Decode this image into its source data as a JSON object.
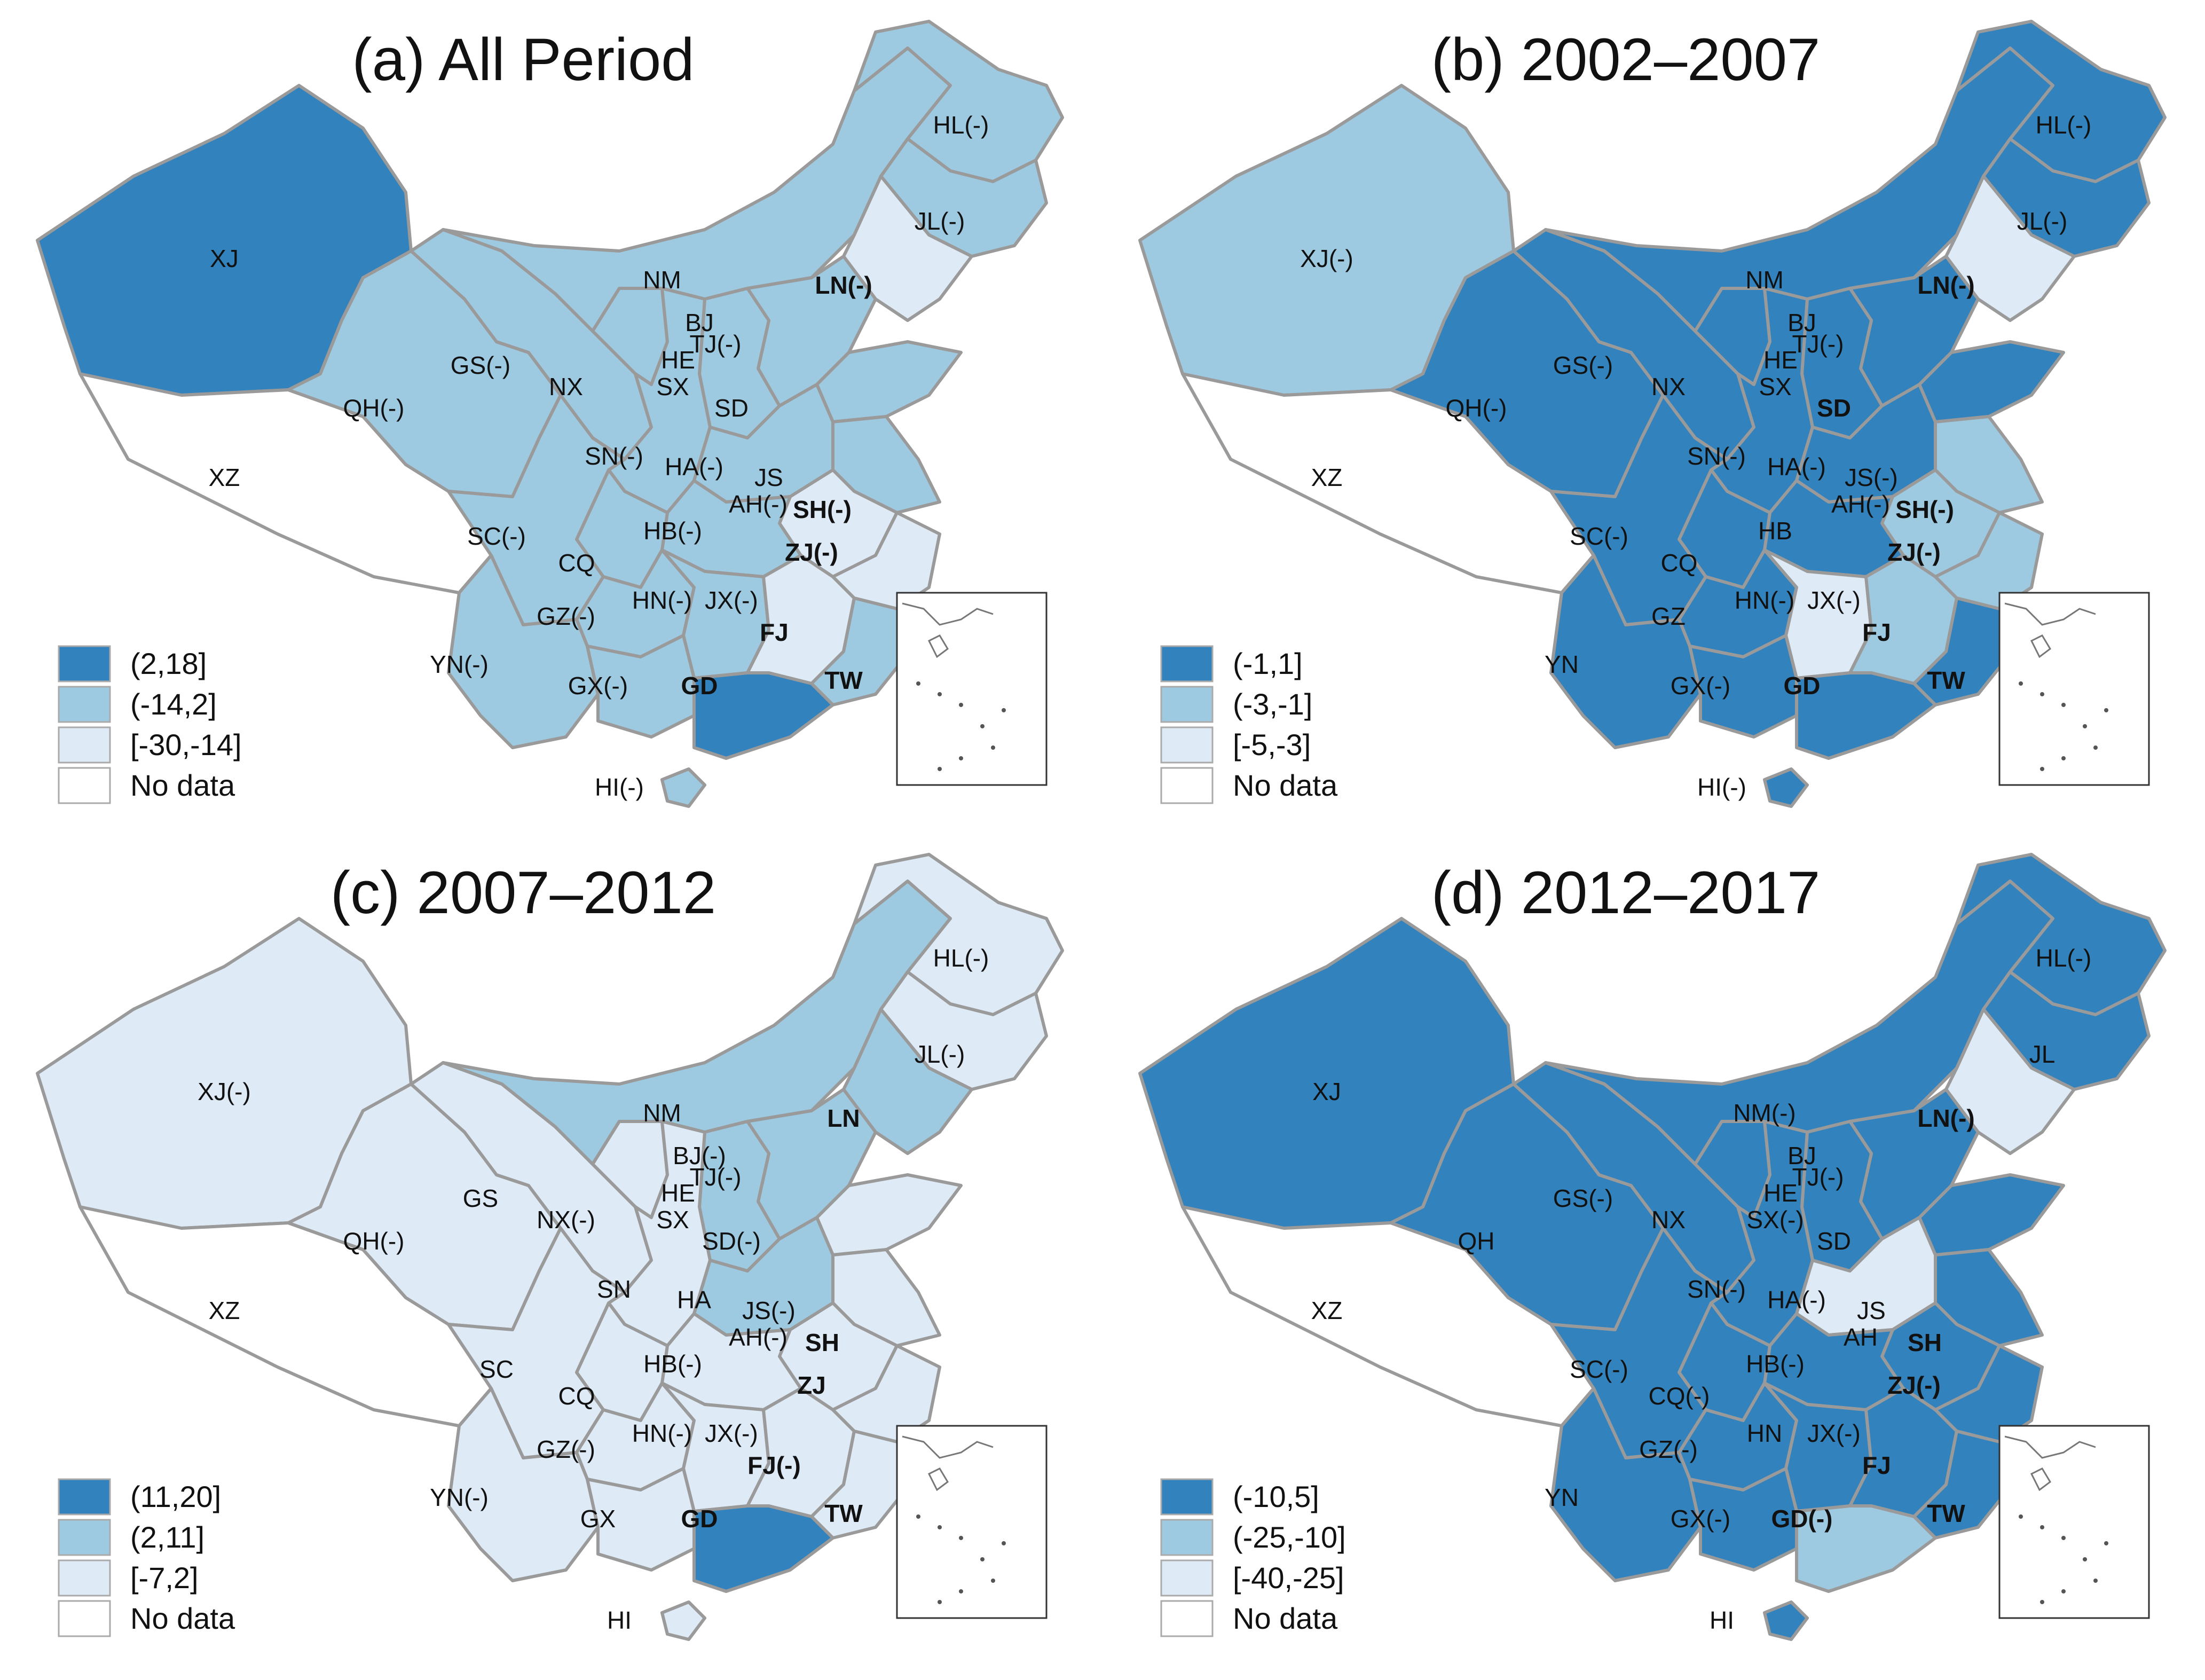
{
  "colors": {
    "class_high": "#3182bd",
    "class_mid": "#9ecae1",
    "class_low": "#deebf7",
    "no_data": "#ffffff",
    "border": "#9a9a9a",
    "text": "#111111"
  },
  "panels": [
    {
      "title": "(a) All Period",
      "legend": [
        "(2,18]",
        "(-14,2]",
        "[-30,-14]",
        "No data"
      ],
      "regions": {
        "XJ": "high",
        "XZ": "none",
        "QH": "mid",
        "GS": "mid",
        "NM": "mid",
        "HL": "mid",
        "JL": "mid",
        "LN": "low",
        "SC": "mid",
        "YN": "mid",
        "GZ": "mid",
        "GX": "mid",
        "GD": "high",
        "FJ": "mid",
        "JX": "low",
        "HN": "mid",
        "HB": "mid",
        "AH": "low",
        "JS": "mid",
        "ZJ": "low",
        "SD": "mid",
        "HA": "mid",
        "SN": "mid",
        "SX": "mid",
        "HE": "mid",
        "NX": "mid",
        "CQ": "mid",
        "HI": "mid",
        "TW": "none"
      },
      "labels": {
        "XJ": "XJ",
        "XZ": "XZ",
        "QH": "QH(-)",
        "GS": "GS(-)",
        "NX": "NX",
        "NM": "NM",
        "HL": "HL(-)",
        "JL": "JL(-)",
        "LN": "LN(-)",
        "BJ": "BJ",
        "TJ": "TJ(-)",
        "HE": "HE",
        "SX": "SX",
        "SD": "SD",
        "SN": "SN(-)",
        "HA": "HA(-)",
        "JS": "JS",
        "AH": "AH(-)",
        "SH": "SH(-)",
        "SC": "SC(-)",
        "CQ": "CQ",
        "HB": "HB(-)",
        "ZJ": "ZJ(-)",
        "GZ": "GZ(-)",
        "HN": "HN(-)",
        "JX": "JX(-)",
        "FJ": "FJ",
        "YN": "YN(-)",
        "GX": "GX(-)",
        "GD": "GD",
        "TW": "TW",
        "HI": "HI(-)"
      },
      "bold": [
        "LN",
        "SH",
        "ZJ",
        "FJ",
        "GD",
        "TW"
      ]
    },
    {
      "title": "(b) 2002–2007",
      "legend": [
        "(-1,1]",
        "(-3,-1]",
        "[-5,-3]",
        "No data"
      ],
      "regions": {
        "XJ": "mid",
        "XZ": "none",
        "QH": "high",
        "GS": "high",
        "NM": "high",
        "HL": "high",
        "JL": "high",
        "LN": "low",
        "SC": "high",
        "YN": "high",
        "GZ": "high",
        "GX": "high",
        "GD": "high",
        "FJ": "high",
        "JX": "mid",
        "HN": "low",
        "HB": "high",
        "AH": "mid",
        "JS": "mid",
        "ZJ": "mid",
        "SD": "high",
        "HA": "high",
        "SN": "high",
        "SX": "high",
        "HE": "high",
        "NX": "high",
        "CQ": "high",
        "HI": "high",
        "TW": "none"
      },
      "labels": {
        "XJ": "XJ(-)",
        "XZ": "XZ",
        "QH": "QH(-)",
        "GS": "GS(-)",
        "NX": "NX",
        "NM": "NM",
        "HL": "HL(-)",
        "JL": "JL(-)",
        "LN": "LN(-)",
        "BJ": "BJ",
        "TJ": "TJ(-)",
        "HE": "HE",
        "SX": "SX",
        "SD": "SD",
        "SN": "SN(-)",
        "HA": "HA(-)",
        "JS": "JS(-)",
        "AH": "AH(-)",
        "SH": "SH(-)",
        "SC": "SC(-)",
        "CQ": "CQ",
        "HB": "HB",
        "ZJ": "ZJ(-)",
        "GZ": "GZ",
        "HN": "HN(-)",
        "JX": "JX(-)",
        "FJ": "FJ",
        "YN": "YN",
        "GX": "GX(-)",
        "GD": "GD",
        "TW": "TW",
        "HI": "HI(-)"
      },
      "bold": [
        "LN",
        "SH",
        "ZJ",
        "FJ",
        "GD",
        "TW",
        "SD"
      ]
    },
    {
      "title": "(c) 2007–2012",
      "legend": [
        "(11,20]",
        "(2,11]",
        "[-7,2]",
        "No data"
      ],
      "regions": {
        "XJ": "low",
        "XZ": "none",
        "QH": "low",
        "GS": "low",
        "NM": "mid",
        "HL": "low",
        "JL": "low",
        "LN": "mid",
        "SC": "low",
        "YN": "low",
        "GZ": "low",
        "GX": "low",
        "GD": "high",
        "FJ": "low",
        "JX": "low",
        "HN": "low",
        "HB": "low",
        "AH": "low",
        "JS": "low",
        "ZJ": "low",
        "SD": "low",
        "HA": "mid",
        "SN": "low",
        "SX": "mid",
        "HE": "mid",
        "NX": "low",
        "CQ": "low",
        "HI": "low",
        "TW": "none"
      },
      "labels": {
        "XJ": "XJ(-)",
        "XZ": "XZ",
        "QH": "QH(-)",
        "GS": "GS",
        "NX": "NX(-)",
        "NM": "NM",
        "HL": "HL(-)",
        "JL": "JL(-)",
        "LN": "LN",
        "BJ": "BJ(-)",
        "TJ": "TJ(-)",
        "HE": "HE",
        "SX": "SX",
        "SD": "SD(-)",
        "SN": "SN",
        "HA": "HA",
        "JS": "JS(-)",
        "AH": "AH(-)",
        "SH": "SH",
        "SC": "SC",
        "CQ": "CQ",
        "HB": "HB(-)",
        "ZJ": "ZJ",
        "GZ": "GZ(-)",
        "HN": "HN(-)",
        "JX": "JX(-)",
        "FJ": "FJ(-)",
        "YN": "YN(-)",
        "GX": "GX",
        "GD": "GD",
        "TW": "TW",
        "HI": "HI"
      },
      "bold": [
        "LN",
        "SH",
        "ZJ",
        "FJ",
        "GD",
        "TW"
      ]
    },
    {
      "title": "(d) 2012–2017",
      "legend": [
        "(-10,5]",
        "(-25,-10]",
        "[-40,-25]",
        "No data"
      ],
      "regions": {
        "XJ": "high",
        "XZ": "none",
        "QH": "high",
        "GS": "high",
        "NM": "high",
        "HL": "high",
        "JL": "high",
        "LN": "low",
        "SC": "high",
        "YN": "high",
        "GZ": "high",
        "GX": "high",
        "GD": "mid",
        "FJ": "high",
        "JX": "high",
        "HN": "high",
        "HB": "high",
        "AH": "high",
        "JS": "high",
        "ZJ": "high",
        "SD": "high",
        "HA": "low",
        "SN": "high",
        "SX": "high",
        "HE": "high",
        "NX": "high",
        "CQ": "high",
        "HI": "high",
        "TW": "none"
      },
      "labels": {
        "XJ": "XJ",
        "XZ": "XZ",
        "QH": "QH",
        "GS": "GS(-)",
        "NX": "NX",
        "NM": "NM(-)",
        "HL": "HL(-)",
        "JL": "JL",
        "LN": "LN(-)",
        "BJ": "BJ",
        "TJ": "TJ(-)",
        "HE": "HE",
        "SX": "SX(-)",
        "SD": "SD",
        "SN": "SN(-)",
        "HA": "HA(-)",
        "JS": "JS",
        "AH": "AH",
        "SH": "SH",
        "SC": "SC(-)",
        "CQ": "CQ(-)",
        "HB": "HB(-)",
        "ZJ": "ZJ(-)",
        "GZ": "GZ(-)",
        "HN": "HN",
        "JX": "JX(-)",
        "FJ": "FJ",
        "YN": "YN",
        "GX": "GX(-)",
        "GD": "GD(-)",
        "TW": "TW",
        "HI": "HI"
      },
      "bold": [
        "LN",
        "SH",
        "ZJ",
        "FJ",
        "GD",
        "TW"
      ]
    }
  ]
}
